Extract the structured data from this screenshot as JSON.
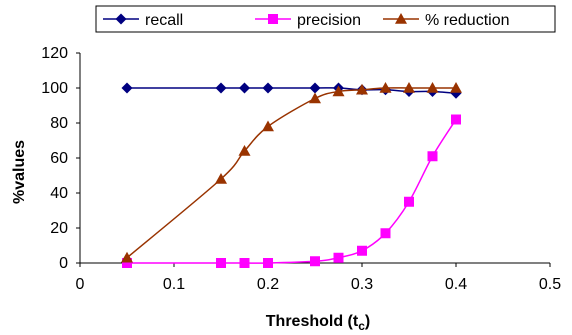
{
  "chart_data": {
    "type": "line",
    "xlabel": "Threshold (t",
    "xlabel_sub": "c",
    "xlabel_close": ")",
    "ylabel": "%values",
    "xlim": [
      0,
      0.5
    ],
    "ylim": [
      0,
      120
    ],
    "xticks": [
      "0",
      "0.1",
      "0.2",
      "0.3",
      "0.4",
      "0.5"
    ],
    "yticks": [
      "0",
      "20",
      "40",
      "60",
      "80",
      "100",
      "120"
    ],
    "grid": false,
    "legend_position": "top",
    "series": [
      {
        "name": "recall",
        "color": "#000080",
        "marker": "diamond",
        "x": [
          0.05,
          0.15,
          0.175,
          0.2,
          0.25,
          0.275,
          0.3,
          0.325,
          0.35,
          0.375,
          0.4
        ],
        "y": [
          100,
          100,
          100,
          100,
          100,
          100,
          99,
          99,
          98,
          98,
          97
        ]
      },
      {
        "name": "precision",
        "color": "#FF00FF",
        "marker": "square",
        "x": [
          0.05,
          0.15,
          0.175,
          0.2,
          0.25,
          0.275,
          0.3,
          0.325,
          0.35,
          0.375,
          0.4
        ],
        "y": [
          0,
          0,
          0,
          0,
          1,
          3,
          7,
          17,
          35,
          61,
          82
        ]
      },
      {
        "name": "% reduction",
        "color": "#993300",
        "marker": "triangle",
        "x": [
          0.05,
          0.15,
          0.175,
          0.2,
          0.25,
          0.275,
          0.3,
          0.325,
          0.35,
          0.375,
          0.4
        ],
        "y": [
          3,
          48,
          64,
          78,
          94,
          98,
          99,
          100,
          100,
          100,
          100
        ]
      }
    ]
  }
}
